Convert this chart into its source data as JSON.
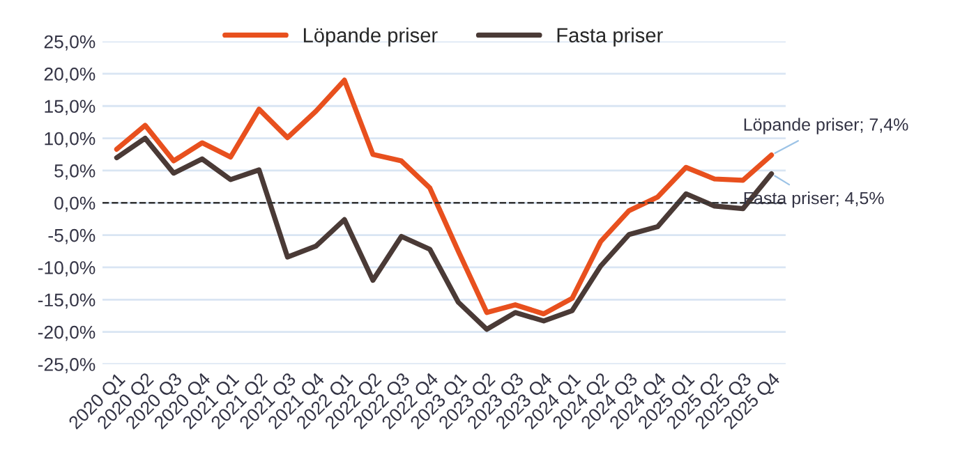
{
  "chart_data": {
    "type": "line",
    "categories": [
      "2020 Q1",
      "2020 Q2",
      "2020 Q3",
      "2020 Q4",
      "2021 Q1",
      "2021 Q2",
      "2021 Q3",
      "2021 Q4",
      "2022 Q1",
      "2022 Q2",
      "2022 Q3",
      "2022 Q4",
      "2023 Q1",
      "2023 Q2",
      "2023 Q3",
      "2023 Q4",
      "2024 Q1",
      "2024 Q2",
      "2024 Q3",
      "2024 Q4",
      "2025 Q1",
      "2025 Q2",
      "2025 Q3",
      "2025 Q4"
    ],
    "series": [
      {
        "name": "Löpande priser",
        "color": "#e8501e",
        "values": [
          8.3,
          12.0,
          6.5,
          9.3,
          7.1,
          14.5,
          10.1,
          14.2,
          19.0,
          7.5,
          6.5,
          2.3,
          -7.5,
          -17.0,
          -15.8,
          -17.2,
          -14.8,
          -6.0,
          -1.2,
          0.9,
          5.5,
          3.7,
          3.5,
          7.4
        ]
      },
      {
        "name": "Fasta priser",
        "color": "#4a3a36",
        "values": [
          7.0,
          10.0,
          4.6,
          6.8,
          3.6,
          5.1,
          -8.4,
          -6.7,
          -2.6,
          -12.0,
          -5.2,
          -7.2,
          -15.4,
          -19.6,
          -17.0,
          -18.3,
          -16.7,
          -9.8,
          -4.9,
          -3.7,
          1.4,
          -0.5,
          -0.9,
          4.5
        ]
      }
    ],
    "ylim": [
      -25,
      25
    ],
    "yticks": [
      {
        "value": -25,
        "label": "-25,0%"
      },
      {
        "value": -20,
        "label": "-20,0%"
      },
      {
        "value": -15,
        "label": "-15,0%"
      },
      {
        "value": -10,
        "label": "-10,0%"
      },
      {
        "value": -5,
        "label": "-5,0%"
      },
      {
        "value": 0,
        "label": "0,0%"
      },
      {
        "value": 5,
        "label": "5,0%"
      },
      {
        "value": 10,
        "label": "10,0%"
      },
      {
        "value": 15,
        "label": "15,0%"
      },
      {
        "value": 20,
        "label": "20,0%"
      },
      {
        "value": 25,
        "label": "25,0%"
      }
    ],
    "ref_lines": [
      {
        "axis": "y",
        "value": 0,
        "color": "#333333",
        "line_style": "dashed"
      }
    ],
    "annotations": [
      {
        "text": "Löpande priser; 7,4%",
        "x": "2025 Q4",
        "y": 7.4
      },
      {
        "text": "Fasta priser; 4,5%",
        "x": "2025 Q4",
        "y": 4.5
      }
    ],
    "grid": "y",
    "legend": "top",
    "marker": "none",
    "line_style": "solid"
  }
}
